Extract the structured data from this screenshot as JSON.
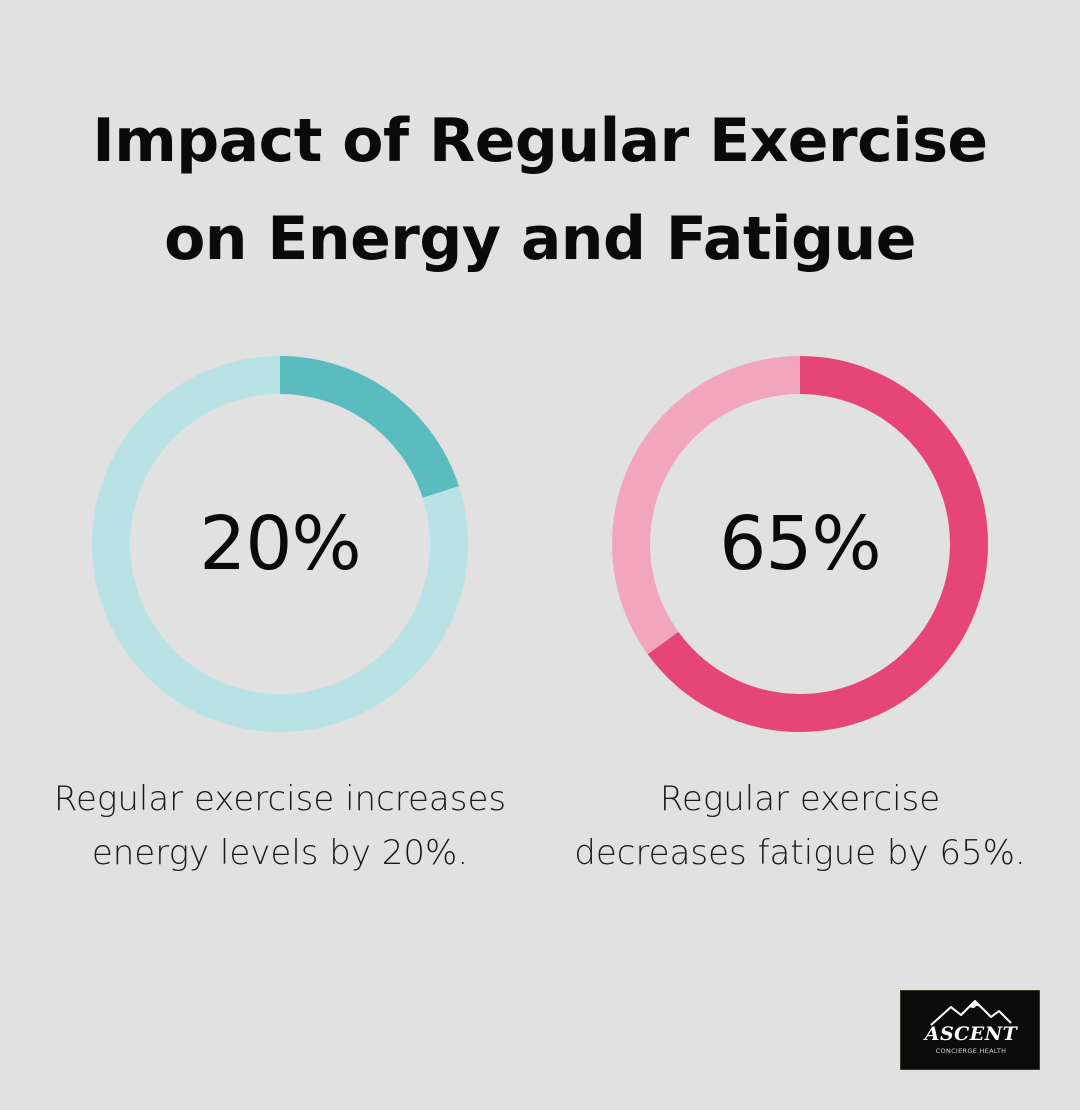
{
  "title": {
    "line1": "Impact of Regular Exercise",
    "line2": "on Energy and Fatigue"
  },
  "chart_data": [
    {
      "type": "pie",
      "variant": "donut",
      "value": 20,
      "max": 100,
      "label": "20%",
      "caption_line1": "Regular exercise increases",
      "caption_line2": "energy levels by 20%.",
      "colors": {
        "filled": "#5bbcc0",
        "track": "#b9e2e4"
      }
    },
    {
      "type": "pie",
      "variant": "donut",
      "value": 65,
      "max": 100,
      "label": "65%",
      "caption_line1": "Regular exercise",
      "caption_line2": "decreases fatigue by 65%.",
      "colors": {
        "filled": "#e54677",
        "track": "#f2a6be"
      }
    }
  ],
  "logo": {
    "name": "ASCENT",
    "subtitle": "CONCIERGE HEALTH",
    "icon": "mountain-icon"
  },
  "colors": {
    "background": "#e0e1e0",
    "text": "#0a0a0a"
  }
}
